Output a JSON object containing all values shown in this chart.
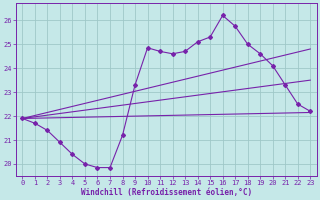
{
  "background_color": "#c5e8e8",
  "grid_color": "#9fc8c8",
  "line_color": "#7722aa",
  "xlim": [
    -0.5,
    23.5
  ],
  "ylim": [
    19.5,
    26.7
  ],
  "yticks": [
    20,
    21,
    22,
    23,
    24,
    25,
    26
  ],
  "xticks": [
    0,
    1,
    2,
    3,
    4,
    5,
    6,
    7,
    8,
    9,
    10,
    11,
    12,
    13,
    14,
    15,
    16,
    17,
    18,
    19,
    20,
    21,
    22,
    23
  ],
  "xlabel": "Windchill (Refroidissement éolien,°C)",
  "curve_x": [
    0,
    1,
    2,
    3,
    4,
    5,
    6,
    7,
    8,
    9,
    10,
    11,
    12,
    13,
    14,
    15,
    16,
    17,
    18,
    19,
    20,
    21,
    22,
    23
  ],
  "curve_y": [
    21.9,
    21.7,
    21.4,
    20.9,
    20.4,
    20.0,
    19.85,
    19.85,
    21.2,
    23.3,
    24.85,
    24.7,
    24.6,
    24.7,
    25.1,
    25.3,
    26.2,
    25.75,
    25.0,
    24.6,
    24.1,
    23.3,
    22.5,
    22.2
  ],
  "line1_x": [
    0,
    23
  ],
  "line1_y": [
    21.9,
    22.15
  ],
  "line2_x": [
    0,
    23
  ],
  "line2_y": [
    21.9,
    23.5
  ],
  "line3_x": [
    0,
    23
  ],
  "line3_y": [
    21.9,
    24.8
  ]
}
